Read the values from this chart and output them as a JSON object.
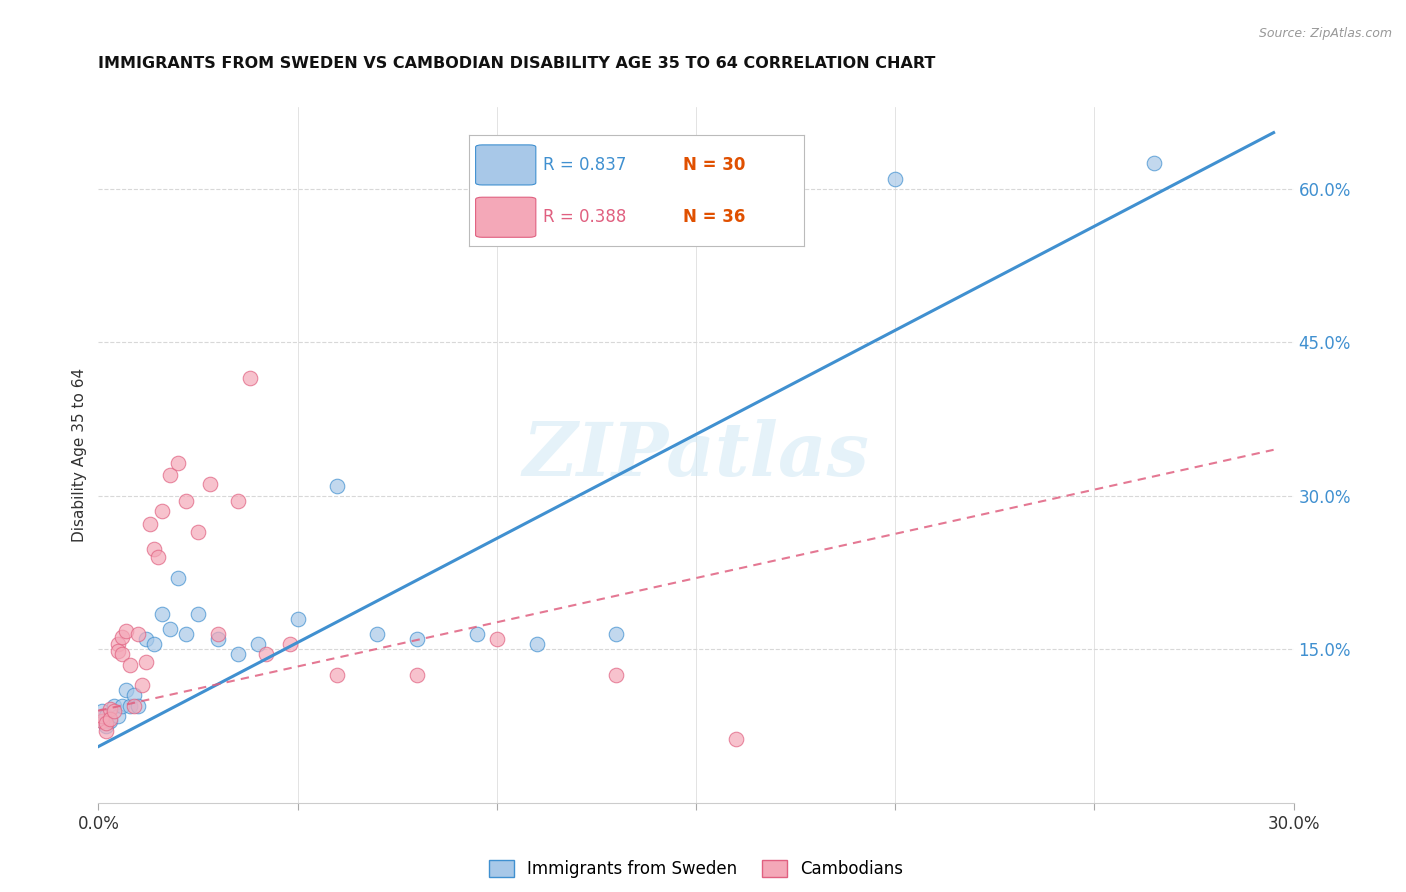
{
  "title": "IMMIGRANTS FROM SWEDEN VS CAMBODIAN DISABILITY AGE 35 TO 64 CORRELATION CHART",
  "source": "Source: ZipAtlas.com",
  "ylabel": "Disability Age 35 to 64",
  "xlim": [
    0.0,
    0.3
  ],
  "ylim": [
    0.0,
    0.68
  ],
  "xticks": [
    0.0,
    0.05,
    0.1,
    0.15,
    0.2,
    0.25,
    0.3
  ],
  "xticklabels": [
    "0.0%",
    "",
    "",
    "",
    "",
    "",
    "30.0%"
  ],
  "yticks_right": [
    0.15,
    0.3,
    0.45,
    0.6
  ],
  "ytick_right_labels": [
    "15.0%",
    "30.0%",
    "45.0%",
    "60.0%"
  ],
  "legend_blue_r": "R = 0.837",
  "legend_blue_n": "N = 30",
  "legend_pink_r": "R = 0.388",
  "legend_pink_n": "N = 36",
  "watermark": "ZIPatlas",
  "blue_color": "#a8c8e8",
  "pink_color": "#f4a8b8",
  "blue_line_color": "#4090d0",
  "pink_line_color": "#e06080",
  "legend_blue_r_color": "#4090d0",
  "legend_blue_n_color": "#e05000",
  "legend_pink_r_color": "#e06080",
  "legend_pink_n_color": "#e05000",
  "blue_scatter_x": [
    0.001,
    0.002,
    0.002,
    0.003,
    0.004,
    0.005,
    0.006,
    0.007,
    0.008,
    0.009,
    0.01,
    0.012,
    0.014,
    0.016,
    0.018,
    0.02,
    0.022,
    0.025,
    0.03,
    0.035,
    0.04,
    0.05,
    0.06,
    0.07,
    0.08,
    0.095,
    0.11,
    0.13,
    0.2,
    0.265
  ],
  "blue_scatter_y": [
    0.09,
    0.075,
    0.085,
    0.08,
    0.095,
    0.085,
    0.095,
    0.11,
    0.095,
    0.105,
    0.095,
    0.16,
    0.155,
    0.185,
    0.17,
    0.22,
    0.165,
    0.185,
    0.16,
    0.145,
    0.155,
    0.18,
    0.31,
    0.165,
    0.16,
    0.165,
    0.155,
    0.165,
    0.61,
    0.625
  ],
  "pink_scatter_x": [
    0.001,
    0.001,
    0.002,
    0.002,
    0.003,
    0.003,
    0.004,
    0.005,
    0.005,
    0.006,
    0.006,
    0.007,
    0.008,
    0.009,
    0.01,
    0.011,
    0.012,
    0.013,
    0.014,
    0.015,
    0.016,
    0.018,
    0.02,
    0.022,
    0.025,
    0.028,
    0.03,
    0.035,
    0.038,
    0.042,
    0.048,
    0.06,
    0.08,
    0.1,
    0.13,
    0.16
  ],
  "pink_scatter_y": [
    0.08,
    0.085,
    0.07,
    0.078,
    0.092,
    0.082,
    0.09,
    0.155,
    0.148,
    0.162,
    0.145,
    0.168,
    0.135,
    0.095,
    0.165,
    0.115,
    0.138,
    0.272,
    0.248,
    0.24,
    0.285,
    0.32,
    0.332,
    0.295,
    0.265,
    0.312,
    0.165,
    0.295,
    0.415,
    0.145,
    0.155,
    0.125,
    0.125,
    0.16,
    0.125,
    0.062
  ],
  "blue_line_x": [
    0.0,
    0.295
  ],
  "blue_line_y": [
    0.055,
    0.655
  ],
  "pink_line_x": [
    0.0,
    0.295
  ],
  "pink_line_y": [
    0.09,
    0.345
  ],
  "background_color": "#ffffff",
  "grid_color": "#d8d8d8"
}
